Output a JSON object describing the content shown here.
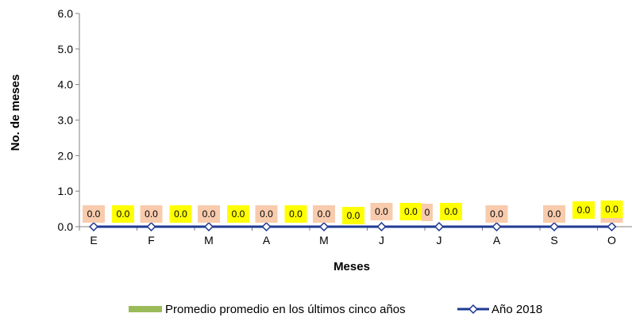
{
  "chart_data": {
    "type": "bar+line",
    "categories": [
      "E",
      "F",
      "M",
      "A",
      "M",
      "J",
      "J",
      "A",
      "S",
      "O"
    ],
    "series": [
      {
        "name": "Promedio promedio en los  últimos cinco años",
        "type": "bar",
        "color": "#9bbb59",
        "values": [
          0,
          0,
          0,
          0,
          0,
          0,
          0,
          0,
          0,
          0
        ],
        "labels": [
          "0.0",
          "0.0",
          "0.0",
          "0.0",
          "0.0",
          "0.0",
          "0",
          "0.0",
          "0.0",
          "0.0"
        ],
        "label_bg": "#f8cbad"
      },
      {
        "name": "Año 2018",
        "type": "line",
        "color": "#1f3a93",
        "marker": "diamond",
        "values": [
          0,
          0,
          0,
          0,
          0,
          0,
          0,
          0,
          0,
          0
        ],
        "labels": [
          "0.0",
          "0.0",
          "0.0",
          "0.0",
          "0.0",
          "0.0",
          "0.0",
          "",
          "0.0",
          "0.0"
        ],
        "label_bg": "#ffff00"
      }
    ],
    "xlabel": "Meses",
    "ylabel": "No. de meses",
    "ylim": [
      0,
      6
    ],
    "yticks": [
      "0.0",
      "1.0",
      "2.0",
      "3.0",
      "4.0",
      "5.0",
      "6.0"
    ],
    "legend_position": "bottom",
    "grid": false
  }
}
